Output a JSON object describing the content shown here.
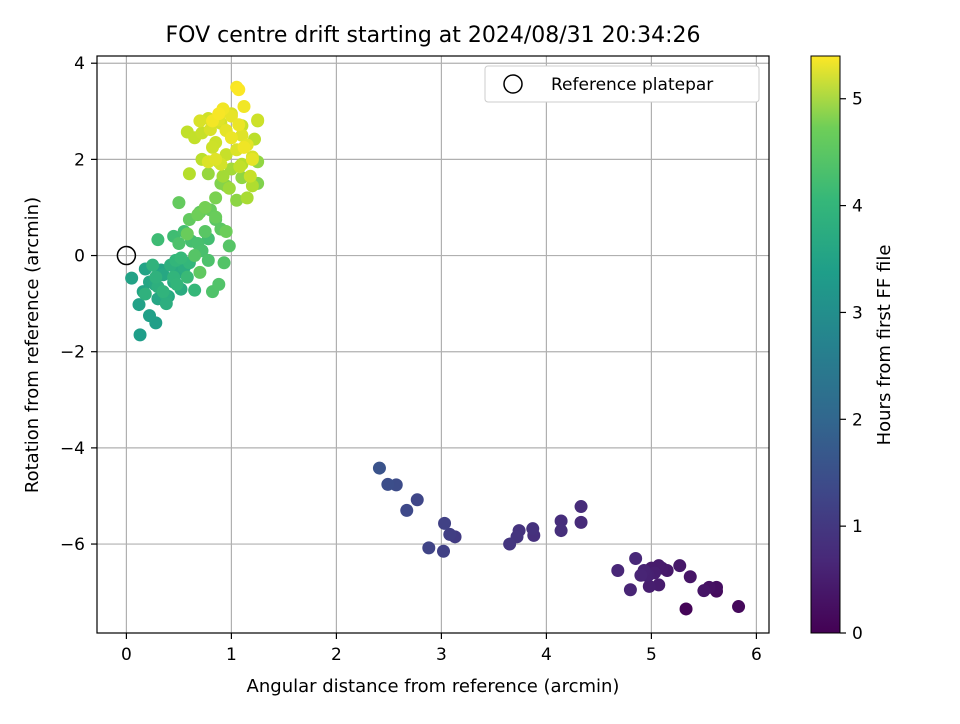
{
  "chart_data": {
    "type": "scatter",
    "title": "FOV centre drift starting at 2024/08/31 20:34:26",
    "xlabel": "Angular distance from reference (arcmin)",
    "ylabel": "Rotation from reference (arcmin)",
    "xlim": [
      -0.28,
      6.12
    ],
    "ylim": [
      -7.85,
      4.15
    ],
    "xticks": [
      0,
      1,
      2,
      3,
      4,
      5,
      6
    ],
    "yticks": [
      -6,
      -4,
      -2,
      0,
      2,
      4
    ],
    "xtick_labels": [
      "0",
      "1",
      "2",
      "3",
      "4",
      "5",
      "6"
    ],
    "ytick_labels": [
      "−6",
      "−4",
      "−2",
      "0",
      "2",
      "4"
    ],
    "grid": true,
    "legend": {
      "placement": "top-right",
      "entries": [
        {
          "label": "Reference platepar",
          "marker": "open-circle",
          "color": "#000000"
        }
      ]
    },
    "reference_point": {
      "x": 0,
      "y": 0
    },
    "colorbar": {
      "label": "Hours from first FF file",
      "colormap": "viridis",
      "range": [
        0,
        5.4
      ],
      "ticks": [
        0,
        1,
        2,
        3,
        4,
        5
      ],
      "tick_labels": [
        "0",
        "1",
        "2",
        "3",
        "4",
        "5"
      ]
    },
    "series": [
      {
        "x": [
          5.33,
          5.83,
          5.62,
          5.62,
          5.55,
          5.5,
          5.37,
          5.27,
          5.1,
          5.07,
          5.07,
          5.03,
          4.98,
          4.97,
          4.95,
          4.93,
          4.9,
          4.8,
          4.68,
          4.85,
          5.15,
          5.0,
          4.33,
          4.33,
          4.14,
          4.14,
          3.88,
          3.87,
          3.74,
          3.72,
          3.65,
          3.13,
          3.08,
          3.02,
          3.03,
          2.88,
          2.77,
          2.67,
          2.57,
          2.49,
          2.41
        ],
        "y": [
          -7.35,
          -7.3,
          -6.98,
          -6.9,
          -6.9,
          -6.97,
          -6.68,
          -6.45,
          -6.5,
          -6.45,
          -6.85,
          -6.6,
          -6.88,
          -6.65,
          -6.65,
          -6.55,
          -6.65,
          -6.95,
          -6.55,
          -6.3,
          -6.55,
          -6.5,
          -5.55,
          -5.22,
          -5.52,
          -5.72,
          -5.82,
          -5.68,
          -5.72,
          -5.85,
          -6.0,
          -5.85,
          -5.8,
          -6.15,
          -5.57,
          -6.08,
          -5.08,
          -5.3,
          -4.77,
          -4.76,
          -4.42
        ],
        "hours": [
          0.05,
          0.12,
          0.15,
          0.2,
          0.25,
          0.3,
          0.3,
          0.35,
          0.38,
          0.4,
          0.42,
          0.45,
          0.45,
          0.48,
          0.5,
          0.52,
          0.55,
          0.55,
          0.58,
          0.6,
          0.35,
          0.4,
          0.65,
          0.68,
          0.7,
          0.72,
          0.75,
          0.78,
          0.8,
          0.82,
          0.85,
          0.95,
          1.0,
          1.05,
          1.05,
          1.1,
          1.15,
          1.2,
          1.25,
          1.3,
          1.4
        ],
        "points_color_by": "hours"
      },
      {
        "x": [
          0.13,
          0.28,
          0.22,
          0.12,
          0.05,
          0.18,
          0.16,
          0.22,
          0.3,
          0.35,
          0.4,
          0.45,
          0.5,
          0.52,
          0.55,
          0.38,
          0.42,
          0.3,
          0.28,
          0.25,
          0.35,
          0.45,
          0.48,
          0.6,
          0.65,
          0.52,
          0.33,
          0.27,
          0.38,
          0.18,
          0.47,
          0.58,
          0.3,
          0.45,
          0.55,
          0.62,
          0.68,
          0.72,
          0.78,
          0.82,
          0.88,
          0.93,
          0.98,
          0.75,
          0.85,
          0.9,
          0.7,
          0.6,
          0.5,
          0.8,
          0.85,
          0.95,
          0.78,
          0.5,
          0.65,
          0.7,
          0.58,
          0.68,
          0.75,
          0.85,
          0.9,
          0.95,
          1.05,
          1.1,
          0.78,
          0.88,
          1.0,
          1.15,
          1.2,
          0.6,
          0.72,
          1.08,
          0.95,
          0.82,
          1.25,
          1.25,
          0.92,
          1.1,
          1.18,
          0.98,
          1.22,
          1.25,
          1.1,
          0.95,
          0.78,
          0.58,
          0.65,
          0.72,
          0.85,
          0.9,
          1.0,
          1.05,
          1.1,
          1.15,
          1.2,
          0.8,
          0.88,
          0.93,
          1.0,
          1.07,
          1.12,
          0.92,
          0.82,
          0.88,
          1.05,
          1.07,
          1.12,
          1.0,
          0.95,
          0.85,
          0.78,
          0.7,
          0.9,
          1.25,
          1.2
        ],
        "y": [
          -1.65,
          -1.4,
          -1.25,
          -1.02,
          -0.47,
          -0.28,
          -0.75,
          -0.55,
          -0.9,
          -0.4,
          -0.85,
          -0.55,
          -0.35,
          -0.7,
          -0.25,
          -1.0,
          -0.2,
          -0.65,
          -0.45,
          -0.2,
          -0.75,
          -0.45,
          -0.6,
          -0.15,
          -0.72,
          -0.05,
          -0.3,
          -0.6,
          -0.85,
          -0.8,
          -0.1,
          -0.45,
          0.33,
          0.4,
          0.5,
          0.3,
          0.25,
          0.1,
          -0.1,
          -0.75,
          -0.6,
          -0.15,
          0.2,
          0.5,
          0.75,
          0.55,
          0.9,
          0.75,
          1.1,
          0.95,
          0.8,
          0.5,
          0.35,
          0.25,
          0.0,
          -0.35,
          0.45,
          0.85,
          1.0,
          1.2,
          1.5,
          1.45,
          1.15,
          1.62,
          1.7,
          1.95,
          1.8,
          1.2,
          1.45,
          1.7,
          2.0,
          1.85,
          2.1,
          2.25,
          1.5,
          1.95,
          1.65,
          1.9,
          1.65,
          1.4,
          2.42,
          2.8,
          2.7,
          2.6,
          2.85,
          2.57,
          2.45,
          2.55,
          2.35,
          2.75,
          2.95,
          2.2,
          2.5,
          2.3,
          2.0,
          2.62,
          2.82,
          3.0,
          2.9,
          2.72,
          2.25,
          3.05,
          2.8,
          2.95,
          3.5,
          3.45,
          3.1,
          2.45,
          2.6,
          2.0,
          1.95,
          2.8,
          1.9,
          2.82,
          2.05
        ],
        "hours": [
          3.0,
          3.02,
          3.05,
          3.08,
          3.1,
          3.12,
          3.15,
          3.18,
          3.2,
          3.22,
          3.25,
          3.28,
          3.3,
          3.32,
          3.35,
          3.38,
          3.4,
          3.42,
          3.45,
          3.48,
          3.5,
          3.52,
          3.55,
          3.58,
          3.6,
          3.62,
          3.15,
          3.25,
          3.35,
          3.45,
          3.55,
          3.65,
          3.7,
          3.72,
          3.75,
          3.78,
          3.8,
          3.82,
          3.85,
          3.88,
          3.9,
          3.92,
          3.95,
          3.98,
          4.0,
          4.02,
          4.05,
          4.08,
          4.1,
          4.12,
          4.15,
          4.18,
          3.75,
          3.85,
          3.95,
          4.05,
          4.15,
          4.2,
          4.25,
          4.3,
          4.35,
          4.4,
          4.45,
          4.5,
          4.55,
          4.6,
          4.65,
          4.7,
          4.75,
          4.8,
          4.85,
          4.9,
          4.95,
          5.0,
          4.35,
          4.5,
          4.65,
          4.8,
          4.95,
          4.6,
          4.85,
          4.9,
          4.95,
          5.0,
          5.02,
          4.9,
          4.92,
          4.95,
          4.98,
          5.05,
          5.1,
          5.12,
          5.15,
          5.18,
          5.2,
          5.1,
          5.15,
          5.2,
          5.22,
          5.25,
          5.28,
          5.3,
          5.32,
          5.35,
          5.35,
          5.38,
          5.3,
          5.25,
          5.2,
          5.15,
          5.12,
          5.1,
          5.05,
          5.0,
          5.08
        ]
      }
    ]
  }
}
